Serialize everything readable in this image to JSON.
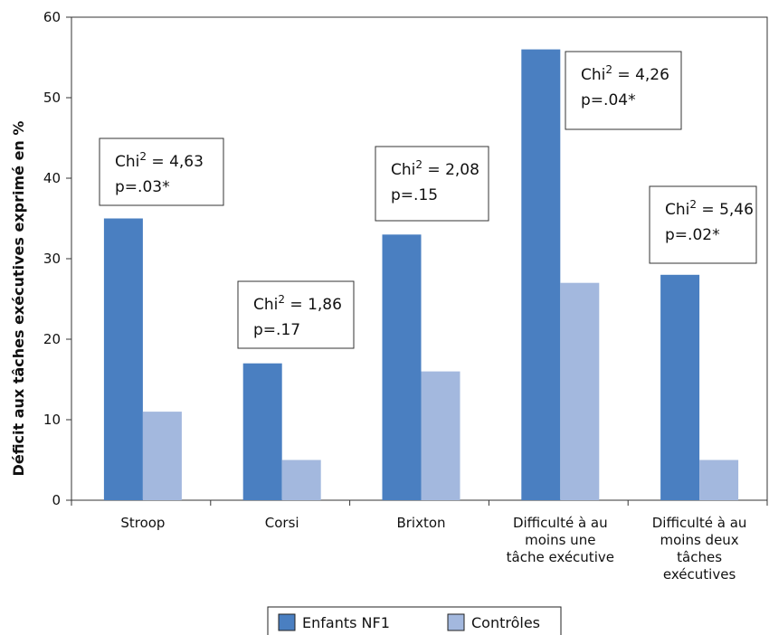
{
  "chart_data": {
    "type": "bar",
    "ylabel": "Déficit aux tâches exécutives exprimé en %",
    "ylim": [
      0,
      60
    ],
    "yticks": [
      0,
      10,
      20,
      30,
      40,
      50,
      60
    ],
    "categories": [
      [
        "Stroop"
      ],
      [
        "Corsi"
      ],
      [
        "Brixton"
      ],
      [
        "Difficulté à au",
        "moins une",
        "tâche exécutive"
      ],
      [
        "Difficulté à au",
        "moins deux",
        "tâches",
        "exécutives"
      ]
    ],
    "series": [
      {
        "name": "Enfants NF1",
        "color": "#4a7fc1",
        "values": [
          35,
          17,
          33,
          56,
          28
        ]
      },
      {
        "name": "Contrôles",
        "color": "#a3b8de",
        "values": [
          11,
          5,
          16,
          27,
          5
        ]
      }
    ],
    "annotations": [
      {
        "chi_prefix": "Chi",
        "sup": "2",
        "chi_value": " = 4,63",
        "p": "p=.03*"
      },
      {
        "chi_prefix": "Chi",
        "sup": "2",
        "chi_value": " = 1,86",
        "p": "p=.17"
      },
      {
        "chi_prefix": "Chi",
        "sup": "2",
        "chi_value": " = 2,08",
        "p": "p=.15"
      },
      {
        "chi_prefix": "Chi",
        "sup": "2",
        "chi_value": " = 4,26",
        "p": "p=.04*"
      },
      {
        "chi_prefix": "Chi",
        "sup": "2",
        "chi_value": " = 5,46",
        "p": "p=.02*"
      }
    ],
    "grid": false,
    "legend_position": "bottom-center"
  }
}
